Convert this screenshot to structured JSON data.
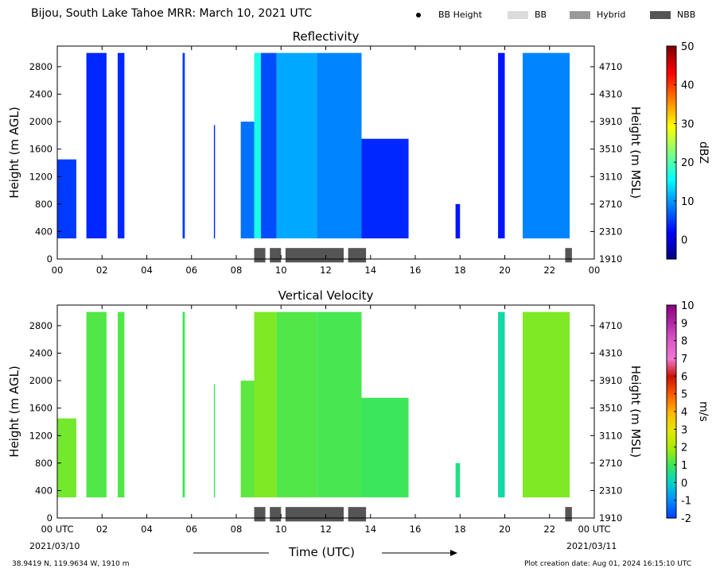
{
  "header": {
    "title": "Bijou, South Lake Tahoe MRR:  March 10, 2021 UTC"
  },
  "legend": [
    {
      "label": "BB Height",
      "marker": "dot",
      "color": "#000000"
    },
    {
      "label": "BB",
      "marker": "box",
      "color": "#dcdcdc"
    },
    {
      "label": "Hybrid",
      "marker": "box",
      "color": "#9a9a9a"
    },
    {
      "label": "NBB",
      "marker": "box",
      "color": "#555555"
    }
  ],
  "footer": {
    "location": "38.9419 N, 119.9634 W, 1910 m",
    "created": "Plot creation date: Aug 01, 2024 16:15:10 UTC",
    "start_date": "2021/03/10",
    "end_date": "2021/03/11",
    "xlabel": "Time (UTC)"
  },
  "chart_data": [
    {
      "type": "heatmap",
      "title": "Reflectivity",
      "xlabel": "Time (UTC)",
      "ylabel": "Height (m AGL)",
      "y2label": "Height (m MSL)",
      "colorbar_label": "dBZ",
      "xlim": [
        0,
        24
      ],
      "ylim": [
        0,
        3100
      ],
      "x_ticks": [
        "00",
        "02",
        "04",
        "06",
        "08",
        "10",
        "12",
        "14",
        "16",
        "18",
        "20",
        "22",
        "00"
      ],
      "y_ticks": [
        0,
        400,
        800,
        1200,
        1600,
        2000,
        2400,
        2800
      ],
      "y2_ticks": [
        1910,
        2310,
        2710,
        3110,
        3510,
        3910,
        4310,
        4710
      ],
      "colorbar_range": [
        -5,
        50
      ],
      "colorbar_ticks": [
        0,
        10,
        20,
        30,
        40,
        50
      ],
      "grid": false,
      "echo_regions": [
        {
          "x": [
            0.0,
            0.85
          ],
          "top": 1450,
          "value": 5
        },
        {
          "x": [
            1.3,
            2.2
          ],
          "top": 3000,
          "value": 4
        },
        {
          "x": [
            2.7,
            3.0
          ],
          "top": 3000,
          "value": 4
        },
        {
          "x": [
            5.6,
            5.7
          ],
          "top": 3000,
          "value": 5
        },
        {
          "x": [
            7.0,
            7.05
          ],
          "top": 1950,
          "value": 4
        },
        {
          "x": [
            8.2,
            8.8
          ],
          "top": 2000,
          "value": 8
        },
        {
          "x": [
            8.8,
            9.1
          ],
          "top": 3000,
          "value": 17
        },
        {
          "x": [
            9.1,
            9.8
          ],
          "top": 3000,
          "value": 6
        },
        {
          "x": [
            9.8,
            11.6
          ],
          "top": 3000,
          "value": 11
        },
        {
          "x": [
            11.6,
            13.6
          ],
          "top": 3000,
          "value": 9
        },
        {
          "x": [
            13.6,
            15.7
          ],
          "top": 1750,
          "value": 4
        },
        {
          "x": [
            17.8,
            18.0
          ],
          "top": 800,
          "value": 3
        },
        {
          "x": [
            19.7,
            20.0
          ],
          "top": 3000,
          "value": 3
        },
        {
          "x": [
            20.8,
            22.9
          ],
          "top": 3000,
          "value": 9
        }
      ],
      "bb_types": [
        {
          "start": 8.8,
          "end": 9.3,
          "type": "NBB"
        },
        {
          "start": 9.5,
          "end": 10.0,
          "type": "NBB"
        },
        {
          "start": 10.2,
          "end": 12.8,
          "type": "NBB"
        },
        {
          "start": 13.0,
          "end": 13.8,
          "type": "NBB"
        },
        {
          "start": 22.7,
          "end": 23.0,
          "type": "NBB"
        }
      ]
    },
    {
      "type": "heatmap",
      "title": "Vertical Velocity",
      "xlabel": "Time (UTC)",
      "ylabel": "Height (m AGL)",
      "y2label": "Height (m MSL)",
      "colorbar_label": "m/s",
      "xlim": [
        0,
        24
      ],
      "ylim": [
        0,
        3100
      ],
      "x_ticks": [
        "00 UTC",
        "02",
        "04",
        "06",
        "08",
        "10",
        "12",
        "14",
        "16",
        "18",
        "20",
        "22",
        "00 UTC"
      ],
      "y_ticks": [
        0,
        400,
        800,
        1200,
        1600,
        2000,
        2400,
        2800
      ],
      "y2_ticks": [
        1910,
        2310,
        2710,
        3110,
        3510,
        3910,
        4310,
        4710
      ],
      "colorbar_range": [
        -2,
        10
      ],
      "colorbar_ticks": [
        -2,
        -1,
        0,
        1,
        2,
        3,
        4,
        5,
        6,
        7,
        8,
        9,
        10
      ],
      "grid": false,
      "echo_regions": [
        {
          "x": [
            0.0,
            0.85
          ],
          "top": 1450,
          "value": 1.5
        },
        {
          "x": [
            1.3,
            2.2
          ],
          "top": 3000,
          "value": 1.2
        },
        {
          "x": [
            2.7,
            3.0
          ],
          "top": 3000,
          "value": 1.2
        },
        {
          "x": [
            5.6,
            5.7
          ],
          "top": 3000,
          "value": 1.0
        },
        {
          "x": [
            7.0,
            7.05
          ],
          "top": 1950,
          "value": 1.0
        },
        {
          "x": [
            8.2,
            8.8
          ],
          "top": 2000,
          "value": 1.3
        },
        {
          "x": [
            8.8,
            9.8
          ],
          "top": 3000,
          "value": 1.6
        },
        {
          "x": [
            9.8,
            11.6
          ],
          "top": 3000,
          "value": 1.2
        },
        {
          "x": [
            11.6,
            13.6
          ],
          "top": 3000,
          "value": 1.1
        },
        {
          "x": [
            13.6,
            15.7
          ],
          "top": 1750,
          "value": 1.0
        },
        {
          "x": [
            17.8,
            18.0
          ],
          "top": 800,
          "value": 0.6
        },
        {
          "x": [
            19.7,
            20.0
          ],
          "top": 3000,
          "value": 0.3
        },
        {
          "x": [
            20.8,
            22.9
          ],
          "top": 3000,
          "value": 1.6
        }
      ],
      "bb_types": [
        {
          "start": 8.8,
          "end": 9.3,
          "type": "NBB"
        },
        {
          "start": 9.5,
          "end": 10.0,
          "type": "NBB"
        },
        {
          "start": 10.2,
          "end": 12.8,
          "type": "NBB"
        },
        {
          "start": 13.0,
          "end": 13.8,
          "type": "NBB"
        },
        {
          "start": 22.7,
          "end": 23.0,
          "type": "NBB"
        }
      ]
    }
  ]
}
